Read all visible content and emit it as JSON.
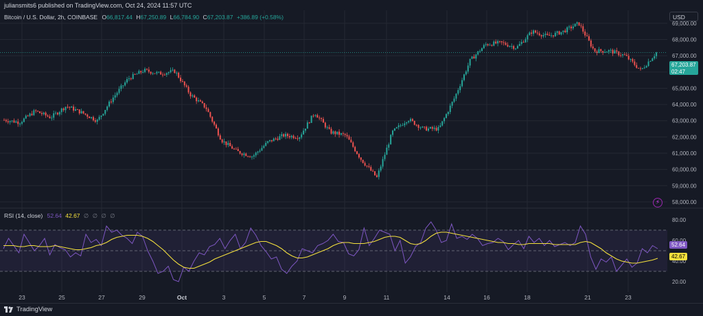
{
  "header": {
    "published": "juliansmits6 published on TradingView.com, Oct 24, 2024 11:57 UTC"
  },
  "legend": {
    "symbol": "Bitcoin / U.S. Dollar, 2h, COINBASE",
    "open_label": "O",
    "open": "66,817.44",
    "high_label": "H",
    "high": "67,250.89",
    "low_label": "L",
    "low": "66,784.90",
    "close_label": "C",
    "close": "67,203.87",
    "change": "+386.89 (+0.58%)"
  },
  "currency_button": "USD",
  "price_tag": {
    "price": "67,203.87",
    "countdown": "02:47"
  },
  "rsi_legend": {
    "name": "RSI (14, close)",
    "rsi": "52.64",
    "ma": "42.67",
    "symbols": [
      "∅",
      "∅",
      "∅",
      "∅"
    ]
  },
  "rsi_tags": {
    "rsi": "52.64",
    "ma": "42.67"
  },
  "footer": {
    "brand": "TradingView"
  },
  "colors": {
    "background": "#161a25",
    "up": "#26a69a",
    "down": "#ef5350",
    "rsi_line": "#7e57c2",
    "rsi_ma": "#f5e13d",
    "grid": "#242833"
  },
  "icons": {
    "alert": "lightning-bolt-icon",
    "logo": "tradingview-logo-icon"
  },
  "chart_data": [
    {
      "type": "candlestick",
      "title": "Bitcoin / U.S. Dollar, 2h, COINBASE",
      "ylim": [
        57700,
        69800
      ],
      "y_ticks": [
        58000,
        59000,
        60000,
        61000,
        62000,
        63000,
        64000,
        65000,
        66000,
        67000,
        68000,
        69000
      ],
      "y_tick_labels": [
        "58,000.00",
        "59,000.00",
        "60,000.00",
        "61,000.00",
        "62,000.00",
        "63,000.00",
        "64,000.00",
        "65,000.00",
        "66,000.00",
        "67,000.00",
        "68,000.00",
        "69,000.00"
      ],
      "x_tick_labels": [
        "23",
        "25",
        "27",
        "29",
        "Oct",
        "3",
        "5",
        "7",
        "9",
        "11",
        "14",
        "16",
        "18",
        "21",
        "23"
      ],
      "last_price": 67203.87,
      "grid": true,
      "close_path": [
        {
          "d": 0,
          "p": 63050
        },
        {
          "d": 1,
          "p": 62900
        },
        {
          "d": 2,
          "p": 63600
        },
        {
          "d": 3,
          "p": 63200
        },
        {
          "d": 4,
          "p": 63900
        },
        {
          "d": 5,
          "p": 63500
        },
        {
          "d": 6,
          "p": 63000
        },
        {
          "d": 7,
          "p": 64400
        },
        {
          "d": 8,
          "p": 65600
        },
        {
          "d": 9,
          "p": 66100
        },
        {
          "d": 10,
          "p": 65900
        },
        {
          "d": 11,
          "p": 66050
        },
        {
          "d": 12,
          "p": 64600
        },
        {
          "d": 13,
          "p": 63800
        },
        {
          "d": 14,
          "p": 61800
        },
        {
          "d": 15,
          "p": 61100
        },
        {
          "d": 16,
          "p": 60800
        },
        {
          "d": 17,
          "p": 61700
        },
        {
          "d": 18,
          "p": 62100
        },
        {
          "d": 19,
          "p": 62000
        },
        {
          "d": 20,
          "p": 63500
        },
        {
          "d": 21,
          "p": 62300
        },
        {
          "d": 22,
          "p": 62100
        },
        {
          "d": 23,
          "p": 60600
        },
        {
          "d": 24,
          "p": 59500
        },
        {
          "d": 25,
          "p": 62300
        },
        {
          "d": 26,
          "p": 63100
        },
        {
          "d": 27,
          "p": 62500
        },
        {
          "d": 28,
          "p": 62500
        },
        {
          "d": 29,
          "p": 64400
        },
        {
          "d": 30,
          "p": 66700
        },
        {
          "d": 31,
          "p": 67700
        },
        {
          "d": 32,
          "p": 67800
        },
        {
          "d": 33,
          "p": 67500
        },
        {
          "d": 34,
          "p": 68500
        },
        {
          "d": 35,
          "p": 68200
        },
        {
          "d": 36,
          "p": 68500
        },
        {
          "d": 37,
          "p": 69000
        },
        {
          "d": 38,
          "p": 67300
        },
        {
          "d": 39,
          "p": 67300
        },
        {
          "d": 40,
          "p": 67000
        },
        {
          "d": 41,
          "p": 66100
        },
        {
          "d": 42,
          "p": 67200
        }
      ]
    },
    {
      "type": "line",
      "title": "RSI (14, close)",
      "ylim": [
        10,
        90
      ],
      "y_ticks": [
        20,
        40,
        60,
        80
      ],
      "y_tick_labels": [
        "20.00",
        "40.00",
        "60.00",
        "80.00"
      ],
      "band": [
        30,
        70
      ],
      "mid": 50,
      "series": [
        {
          "name": "RSI",
          "values": [
            52,
            62,
            55,
            48,
            66,
            58,
            50,
            55,
            62,
            46,
            56,
            53,
            51,
            44,
            48,
            45,
            66,
            58,
            61,
            55,
            74,
            68,
            70,
            65,
            62,
            57,
            68,
            64,
            50,
            40,
            28,
            30,
            35,
            22,
            20,
            34,
            30,
            40,
            48,
            46,
            54,
            56,
            62,
            52,
            60,
            66,
            52,
            58,
            72,
            65,
            55,
            49,
            42,
            44,
            32,
            28,
            35,
            40,
            52,
            50,
            48,
            55,
            57,
            60,
            66,
            59,
            58,
            47,
            45,
            51,
            72,
            55,
            62,
            70,
            68,
            66,
            50,
            60,
            38,
            44,
            54,
            58,
            72,
            78,
            70,
            58,
            60,
            76,
            62,
            64,
            61,
            66,
            62,
            55,
            57,
            58,
            62,
            59,
            51,
            56,
            60,
            52,
            64,
            58,
            62,
            55,
            60,
            54,
            56,
            58,
            55,
            58,
            74,
            66,
            44,
            32,
            42,
            39,
            44,
            30,
            36,
            42,
            34,
            38,
            52,
            48,
            55,
            52
          ]
        },
        {
          "name": "RSI-based MA",
          "values": [
            55,
            55,
            55,
            54,
            54,
            55,
            55,
            54,
            54,
            54,
            55,
            54,
            53,
            52,
            51,
            51,
            52,
            53,
            55,
            56,
            58,
            61,
            63,
            64,
            65,
            65,
            65,
            64,
            62,
            59,
            55,
            51,
            46,
            41,
            37,
            34,
            33,
            33,
            35,
            37,
            39,
            42,
            44,
            46,
            48,
            50,
            52,
            54,
            56,
            58,
            59,
            59,
            57,
            55,
            52,
            48,
            45,
            43,
            43,
            44,
            46,
            48,
            50,
            52,
            55,
            57,
            58,
            58,
            57,
            57,
            57,
            58,
            59,
            61,
            63,
            64,
            64,
            63,
            60,
            57,
            56,
            57,
            60,
            64,
            67,
            68,
            68,
            67,
            66,
            65,
            64,
            63,
            62,
            61,
            60,
            59,
            58,
            58,
            57,
            57,
            56,
            56,
            57,
            57,
            57,
            57,
            57,
            56,
            56,
            56,
            56,
            56,
            58,
            59,
            58,
            55,
            52,
            48,
            45,
            42,
            40,
            39,
            38,
            38,
            39,
            40,
            41,
            42.67
          ]
        }
      ]
    }
  ]
}
